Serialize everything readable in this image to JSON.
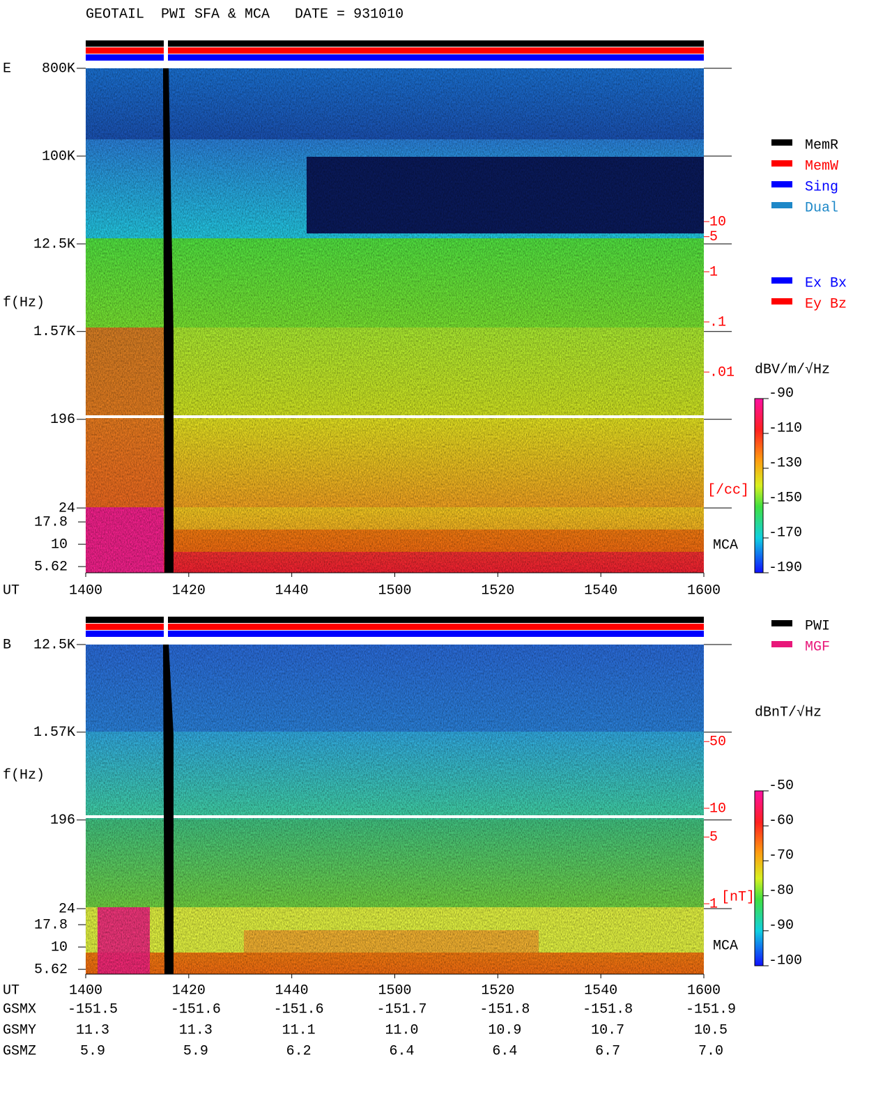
{
  "chart_data": [
    {
      "type": "spectrogram",
      "title": "GEOTAIL  PWI SFA & MCA   DATE = 931010",
      "component": "E",
      "y_label": "f(Hz)",
      "yticks": [
        {
          "value": 800000,
          "label": "800K"
        },
        {
          "value": 100000,
          "label": "100K"
        },
        {
          "value": 12500,
          "label": "12.5K"
        },
        {
          "value": 1570,
          "label": "1.57K"
        },
        196,
        24
      ],
      "mca_yticks": [
        17.8,
        10,
        5.62
      ],
      "mca_label": "MCA",
      "x_label": "UT",
      "xlim": [
        1400,
        1600
      ],
      "xticks": [
        1400,
        1420,
        1440,
        1500,
        1520,
        1540,
        1600
      ],
      "legend": [
        {
          "name": "MemR",
          "color": "#000000"
        },
        {
          "name": "MemW",
          "color": "#ff0000"
        },
        {
          "name": "Sing",
          "color": "#0000ff"
        },
        {
          "name": "Dual",
          "color": "#1e88c8"
        }
      ],
      "channel_legend": [
        {
          "name": "Ex Bx",
          "color": "#0000ff"
        },
        {
          "name": "Ey Bz",
          "color": "#ff0000"
        }
      ],
      "density_ticks": [
        10,
        5,
        1,
        {
          "value": 0.1,
          "label": ".1"
        },
        {
          "value": 0.01,
          "label": ".01"
        }
      ],
      "density_unit": "[/cc]",
      "colorbar_label": "dBV/m/√Hz",
      "colorbar_lim": [
        -90,
        -190
      ],
      "colorbar_ticks": [
        -90,
        -110,
        -130,
        -150,
        -170,
        -190
      ]
    },
    {
      "type": "spectrogram",
      "component": "B",
      "y_label": "f(Hz)",
      "yticks": [
        {
          "value": 12500,
          "label": "12.5K"
        },
        {
          "value": 1570,
          "label": "1.57K"
        },
        196,
        24
      ],
      "mca_yticks": [
        17.8,
        10,
        5.62
      ],
      "mca_label": "MCA",
      "x_label": "UT",
      "xlim": [
        1400,
        1600
      ],
      "xticks": [
        1400,
        1420,
        1440,
        1500,
        1520,
        1540,
        1600
      ],
      "legend": [
        {
          "name": "PWI",
          "color": "#000000"
        },
        {
          "name": "MGF",
          "color": "#e8187a"
        }
      ],
      "density_ticks": [
        50,
        10,
        5,
        1
      ],
      "density_unit": "[nT]",
      "colorbar_label": "dBnT/√Hz",
      "colorbar_lim": [
        -50,
        -100
      ],
      "colorbar_ticks": [
        -50,
        -60,
        -70,
        -80,
        -90,
        -100
      ],
      "ephemeris": [
        {
          "name": "GSMX",
          "values": [
            -151.5,
            -151.6,
            -151.6,
            -151.7,
            -151.8,
            -151.8,
            -151.9
          ]
        },
        {
          "name": "GSMY",
          "values": [
            11.3,
            11.3,
            11.1,
            {
              "value": 11,
              "label": "11.0"
            },
            10.9,
            10.7,
            10.5
          ]
        },
        {
          "name": "GSMZ",
          "values": [
            5.9,
            5.9,
            6.2,
            6.4,
            6.4,
            6.7,
            {
              "value": 7,
              "label": "7.0"
            }
          ]
        }
      ]
    }
  ]
}
